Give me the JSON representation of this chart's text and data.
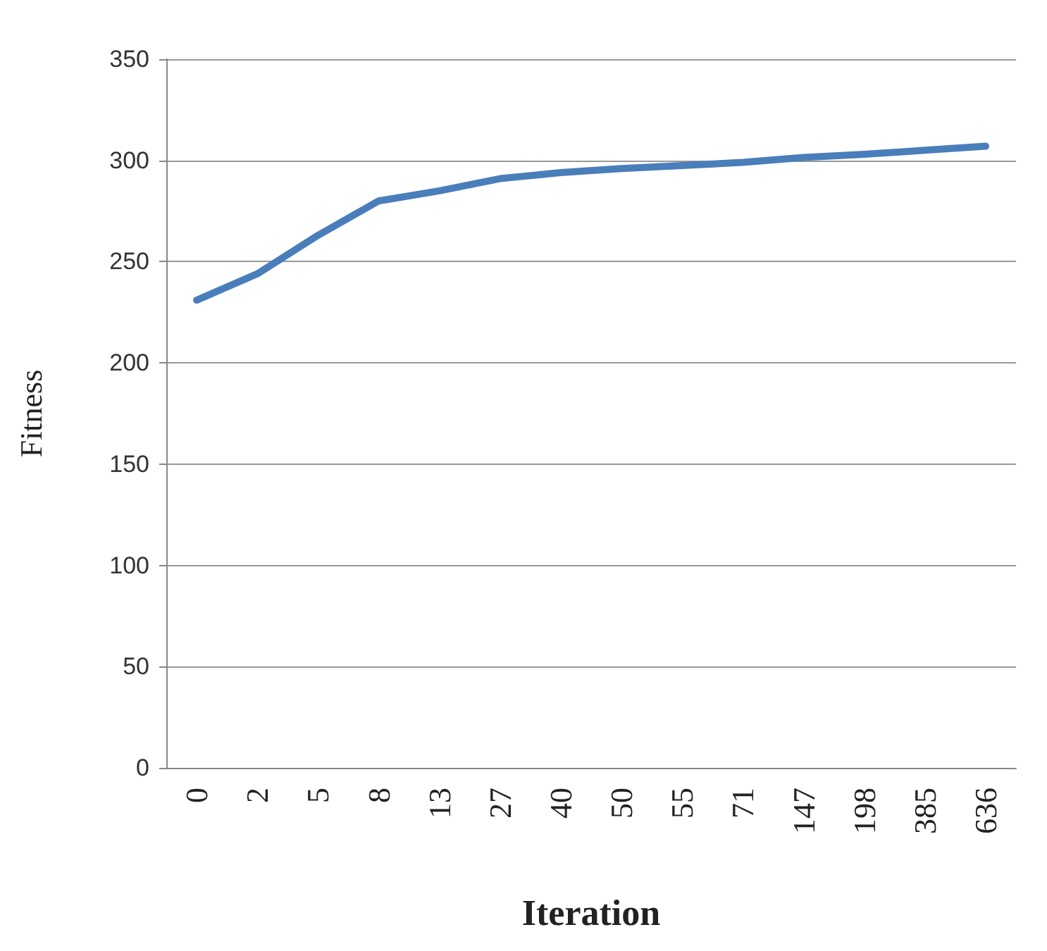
{
  "chart_data": {
    "type": "line",
    "xlabel": "Iteration",
    "ylabel": "Fitness",
    "categories": [
      "0",
      "2",
      "5",
      "8",
      "13",
      "27",
      "40",
      "50",
      "55",
      "71",
      "147",
      "198",
      "385",
      "636"
    ],
    "series": [
      {
        "color": "#4a7ebb",
        "values": [
          231,
          244,
          263,
          280,
          285,
          291,
          294,
          296,
          297.5,
          299,
          301.5,
          303,
          305,
          307
        ]
      }
    ],
    "ylim": [
      0,
      350
    ],
    "yticks": [
      0,
      50,
      100,
      150,
      200,
      250,
      300,
      350
    ],
    "grid": "y",
    "marker": "none",
    "line_style": "solid"
  }
}
